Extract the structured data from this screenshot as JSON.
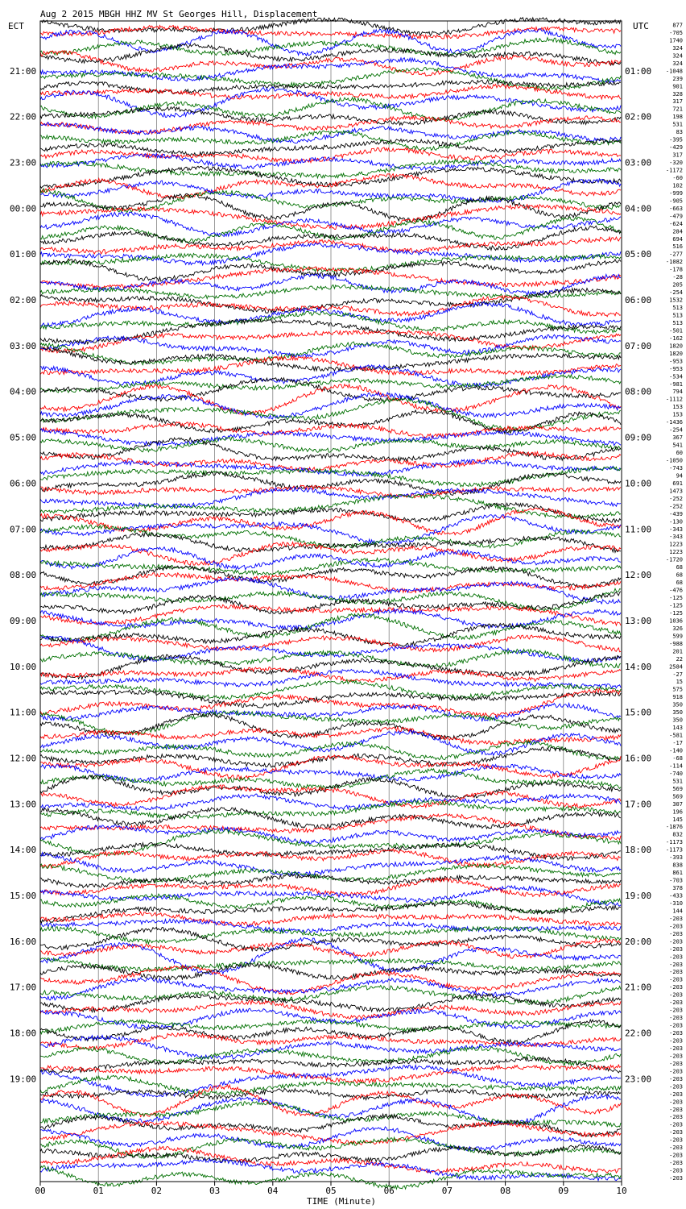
{
  "chart_data": {
    "type": "line",
    "title": "Aug  2 2015 MBGH HHZ MV St Georges Hill, Displacement",
    "left_axis_label": "ECT",
    "right_axis_label": "UTC",
    "xlabel": "TIME (Minute)",
    "x_tick_labels": [
      "00",
      "01",
      "02",
      "03",
      "04",
      "05",
      "06",
      "07",
      "08",
      "09",
      "10"
    ],
    "xlim": [
      0,
      10
    ],
    "grid": true,
    "trace_colors": [
      "#000000",
      "#ff0000",
      "#0000ff",
      "#007000"
    ],
    "traces_per_hour": 6,
    "ect_hour_labels": [
      "21:00",
      "22:00",
      "23:00",
      "00:00",
      "01:00",
      "02:00",
      "03:00",
      "04:00",
      "05:00",
      "06:00",
      "07:00",
      "08:00",
      "09:00",
      "10:00",
      "11:00",
      "12:00",
      "13:00",
      "14:00",
      "15:00",
      "16:00",
      "17:00",
      "18:00",
      "19:00"
    ],
    "utc_hour_labels": [
      "01:00",
      "02:00",
      "03:00",
      "04:00",
      "05:00",
      "06:00",
      "07:00",
      "08:00",
      "09:00",
      "10:00",
      "11:00",
      "12:00",
      "13:00",
      "14:00",
      "15:00",
      "16:00",
      "17:00",
      "18:00",
      "19:00",
      "20:00",
      "21:00",
      "22:00",
      "23:00"
    ],
    "trace_offsets": [
      "877",
      "-705",
      "1740",
      "324",
      "324",
      "324",
      "-1048",
      "239",
      "901",
      "328",
      "317",
      "721",
      "198",
      "531",
      "83",
      "-395",
      "-429",
      "317",
      "-320",
      "-1172",
      "-60",
      "102",
      "-999",
      "-905",
      "-663",
      "-479",
      "-624",
      "284",
      "694",
      "516",
      "-277",
      "-1082",
      "-178",
      "-28",
      "205",
      "-254",
      "1532",
      "513",
      "513",
      "513",
      "-501",
      "-162",
      "1820",
      "1820",
      "-953",
      "-953",
      "-534",
      "-981",
      "794",
      "-1112",
      "153",
      "153",
      "-1436",
      "-254",
      "367",
      "541",
      "60",
      "-1050",
      "-743",
      "94",
      "691",
      "1473",
      "-252",
      "-252",
      "-439",
      "-130",
      "-343",
      "-343",
      "1223",
      "1223",
      "-1720",
      "68",
      "68",
      "68",
      "-476",
      "-125",
      "-125",
      "-125",
      "1036",
      "326",
      "599",
      "-988",
      "201",
      "22",
      "2584",
      "-27",
      "15",
      "575",
      "918",
      "350",
      "350",
      "350",
      "143",
      "-581",
      "-17",
      "-140",
      "-68",
      "-114",
      "-740",
      "531",
      "569",
      "569",
      "307",
      "196",
      "145",
      "-1876",
      "832",
      "-1173",
      "-1173",
      "-393",
      "838",
      "861",
      "-703",
      "378",
      "-433",
      "-310",
      "144",
      "-203",
      "-203",
      "-203",
      "-203",
      "-203",
      "-203",
      "-203",
      "-203",
      "-203",
      "-203",
      "-203",
      "-203",
      "-203",
      "-203",
      "-203",
      "-203",
      "-203",
      "-203",
      "-203",
      "-203",
      "-203",
      "-203",
      "-203",
      "-203",
      "-203",
      "-203",
      "-203",
      "-203",
      "-203",
      "-203",
      "-203",
      "-203",
      "-203",
      "-203",
      "-203"
    ]
  }
}
